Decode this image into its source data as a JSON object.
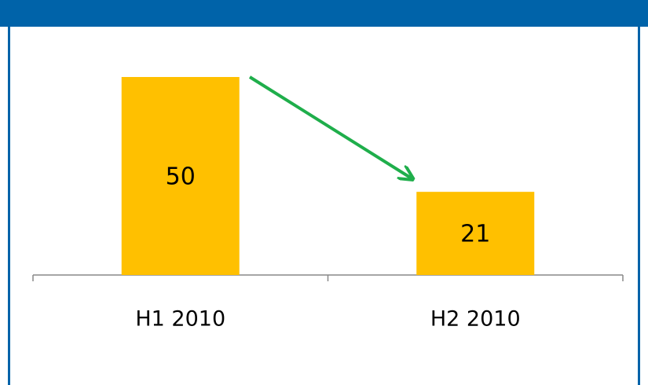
{
  "chart_data": {
    "type": "bar",
    "categories": [
      "H1 2010",
      "H2 2010"
    ],
    "values": [
      50,
      21
    ],
    "color": "#ffc000"
  }
}
